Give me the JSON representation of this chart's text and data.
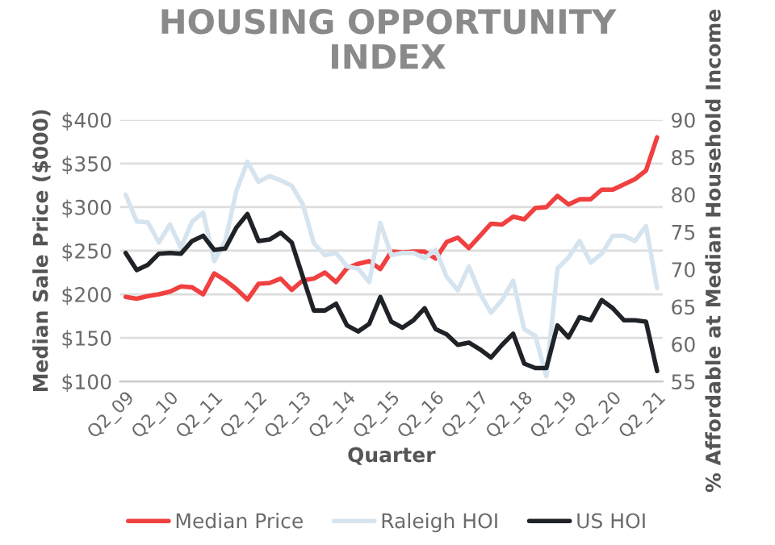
{
  "chart_data": {
    "type": "line",
    "title": "HOUSING OPPORTUNITY\nINDEX",
    "xlabel": "Quarter",
    "ylabel": "Median Sale Price ($000)",
    "y2label": "% Affordable at Median Household Income",
    "categories": [
      "Q2_09",
      null,
      null,
      null,
      "Q2_10",
      null,
      null,
      null,
      "Q2_11",
      null,
      null,
      null,
      "Q2_12",
      null,
      null,
      null,
      "Q2_13",
      null,
      null,
      null,
      "Q2_14",
      null,
      null,
      null,
      "Q2_15",
      null,
      null,
      null,
      "Q2_16",
      null,
      null,
      null,
      "Q2_17",
      null,
      null,
      null,
      "Q2_18",
      null,
      null,
      null,
      "Q2_19",
      null,
      null,
      null,
      "Q2_20",
      null,
      null,
      null,
      "Q2_21"
    ],
    "series": [
      {
        "name": "Median Price",
        "color": "#f04040",
        "values": [
          197,
          195,
          198,
          200,
          203,
          209,
          208,
          200,
          224,
          216,
          206,
          194,
          212,
          213,
          218,
          205,
          216,
          218,
          225,
          214,
          230,
          235,
          238,
          229,
          249,
          248,
          249,
          249,
          241,
          260,
          265,
          253,
          267,
          281,
          280,
          289,
          286,
          299,
          300,
          313,
          303,
          309,
          309,
          320,
          320,
          326,
          332,
          342,
          380
        ]
      },
      {
        "name": "Raleigh HOI",
        "color": "#d6e4ef",
        "axis": "y2",
        "values": [
          80.0,
          76.4,
          76.3,
          73.6,
          76.0,
          72.9,
          76.4,
          77.6,
          71.1,
          73.8,
          80.5,
          84.4,
          81.7,
          82.5,
          81.9,
          81.2,
          78.7,
          73.5,
          71.9,
          72.2,
          70.4,
          70.1,
          68.3,
          76.2,
          71.9,
          72.2,
          72.2,
          71.5,
          72.6,
          69.0,
          67.2,
          70.4,
          66.8,
          64.2,
          65.9,
          68.5,
          62.0,
          61.1,
          55.7,
          70.1,
          71.6,
          73.8,
          70.9,
          72.1,
          74.5,
          74.5,
          73.8,
          75.8,
          67.5
        ]
      },
      {
        "name": "US HOI",
        "color": "#1f2328",
        "axis": "y2",
        "values": [
          72.2,
          69.9,
          70.6,
          72.1,
          72.2,
          72.1,
          73.8,
          74.5,
          72.6,
          72.8,
          75.6,
          77.4,
          73.8,
          74.0,
          74.9,
          73.6,
          69.0,
          64.5,
          64.5,
          65.4,
          62.5,
          61.7,
          62.7,
          66.3,
          63.0,
          62.2,
          63.2,
          64.8,
          62.0,
          61.3,
          59.9,
          60.2,
          59.3,
          58.2,
          59.9,
          61.4,
          57.4,
          56.8,
          56.8,
          62.5,
          60.9,
          63.6,
          63.2,
          65.9,
          64.8,
          63.2,
          63.2,
          63.0,
          56.4
        ]
      }
    ],
    "ylim": [
      100,
      400
    ],
    "yticks": [
      {
        "value": 100,
        "label": "$100"
      },
      {
        "value": 150,
        "label": "$150"
      },
      {
        "value": 200,
        "label": "$200"
      },
      {
        "value": 250,
        "label": "$250"
      },
      {
        "value": 300,
        "label": "$300"
      },
      {
        "value": 350,
        "label": "$350"
      },
      {
        "value": 400,
        "label": "$400"
      }
    ],
    "y2lim": [
      55,
      90
    ],
    "y2ticks": [
      55,
      60,
      65,
      70,
      75,
      80,
      85,
      90
    ],
    "grid": "y",
    "legend": "bottom",
    "marker": "none",
    "line_style": "solid"
  }
}
